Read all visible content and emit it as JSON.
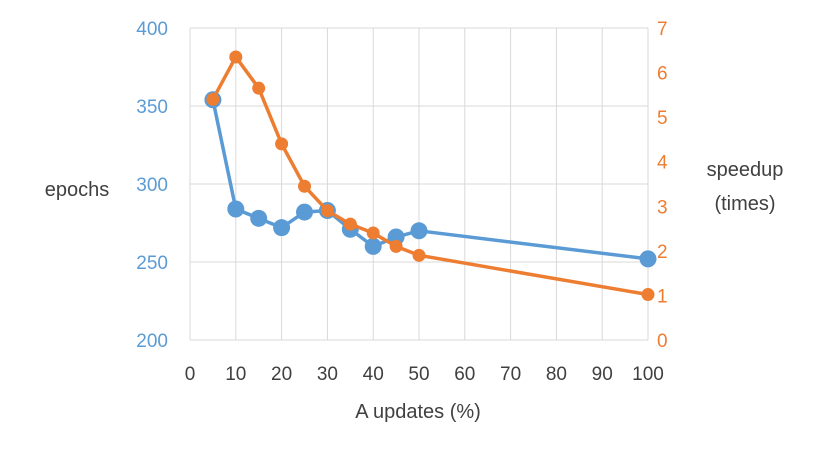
{
  "chart_data": {
    "type": "line",
    "title": "",
    "xlabel": "A updates (%)",
    "ylabel": "epochs",
    "ylabel_right": [
      "speedup",
      "(times)"
    ],
    "x": [
      5,
      10,
      15,
      20,
      25,
      30,
      35,
      40,
      45,
      50,
      100
    ],
    "xlim": [
      0,
      100
    ],
    "xticks": [
      0,
      10,
      20,
      30,
      40,
      50,
      60,
      70,
      80,
      90,
      100
    ],
    "ylim": [
      200,
      400
    ],
    "yticks": [
      200,
      250,
      300,
      350,
      400
    ],
    "ylim_right": [
      0,
      7
    ],
    "yticks_right": [
      0,
      1,
      2,
      3,
      4,
      5,
      6,
      7
    ],
    "grid": true,
    "legend": "none",
    "series": [
      {
        "axis": "left",
        "color": "#5B9BD5",
        "values": [
          354,
          284,
          278,
          272,
          282,
          283,
          271,
          260,
          266,
          270,
          252
        ]
      },
      {
        "axis": "right",
        "color": "#ED7D31",
        "values": [
          5.4,
          6.35,
          5.65,
          4.4,
          3.45,
          2.9,
          2.6,
          2.4,
          2.1,
          1.9,
          1.02
        ]
      }
    ],
    "colors": {
      "left_axis": "#5B9BD5",
      "right_axis": "#ED7D31",
      "grid": "#D9D9D9",
      "text": "#404040"
    }
  }
}
